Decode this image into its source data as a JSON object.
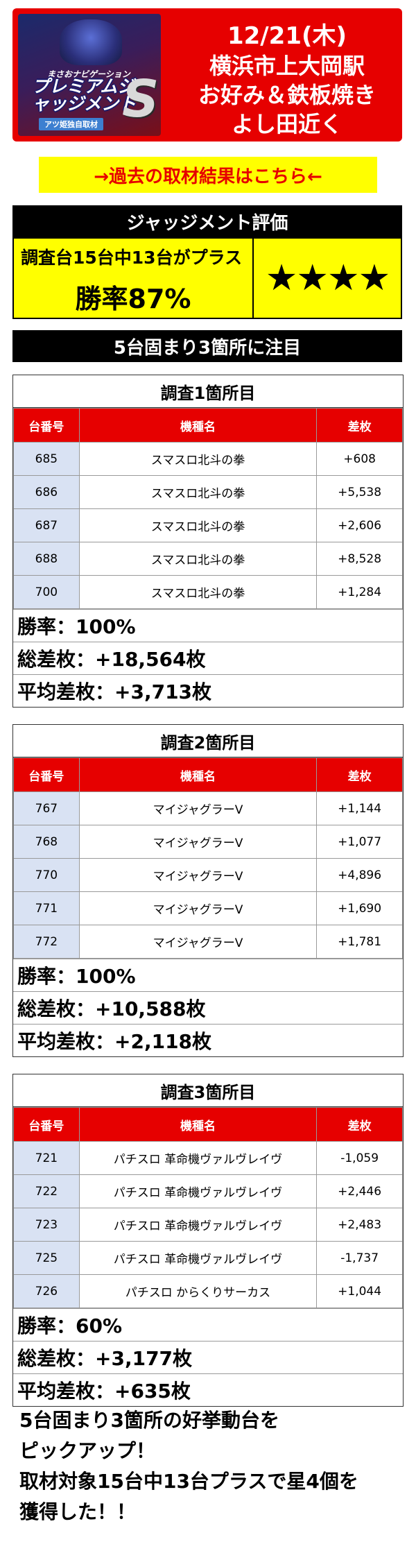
{
  "header": {
    "date": "12/21(木)",
    "lines": [
      "横浜市上大岡駅",
      "お好み＆鉄板焼き",
      "よし田近く"
    ],
    "logo": {
      "top_text": "まさおナビゲーション",
      "main_text": "プレミアムジャッジメント",
      "big_letter": "S",
      "sub_text": "アツ姫独自取材"
    }
  },
  "past_link": {
    "label": "→過去の取材結果はこちら←"
  },
  "judgement": {
    "title": "ジャッジメント評価",
    "summary": "調査台15台中13台がプラス",
    "win_rate": "勝率87%",
    "stars": "★★★★"
  },
  "focus_title": "5台固まり3箇所に注目",
  "table_headers": {
    "machine_no": "台番号",
    "model": "機種名",
    "diff": "差枚"
  },
  "sections": [
    {
      "title": "調査1箇所目",
      "rows": [
        {
          "no": "685",
          "model": "スマスロ北斗の拳",
          "diff": "+608"
        },
        {
          "no": "686",
          "model": "スマスロ北斗の拳",
          "diff": "+5,538"
        },
        {
          "no": "687",
          "model": "スマスロ北斗の拳",
          "diff": "+2,606"
        },
        {
          "no": "688",
          "model": "スマスロ北斗の拳",
          "diff": "+8,528"
        },
        {
          "no": "700",
          "model": "スマスロ北斗の拳",
          "diff": "+1,284"
        }
      ],
      "win_rate": "勝率：100%",
      "total": "総差枚：+18,564枚",
      "average": "平均差枚：+3,713枚"
    },
    {
      "title": "調査2箇所目",
      "rows": [
        {
          "no": "767",
          "model": "マイジャグラーV",
          "diff": "+1,144"
        },
        {
          "no": "768",
          "model": "マイジャグラーV",
          "diff": "+1,077"
        },
        {
          "no": "770",
          "model": "マイジャグラーV",
          "diff": "+4,896"
        },
        {
          "no": "771",
          "model": "マイジャグラーV",
          "diff": "+1,690"
        },
        {
          "no": "772",
          "model": "マイジャグラーV",
          "diff": "+1,781"
        }
      ],
      "win_rate": "勝率：100%",
      "total": "総差枚：+10,588枚",
      "average": "平均差枚：+2,118枚"
    },
    {
      "title": "調査3箇所目",
      "rows": [
        {
          "no": "721",
          "model": "パチスロ 革命機ヴァルヴレイヴ",
          "diff": "-1,059"
        },
        {
          "no": "722",
          "model": "パチスロ 革命機ヴァルヴレイヴ",
          "diff": "+2,446"
        },
        {
          "no": "723",
          "model": "パチスロ 革命機ヴァルヴレイヴ",
          "diff": "+2,483"
        },
        {
          "no": "725",
          "model": "パチスロ 革命機ヴァルヴレイヴ",
          "diff": "-1,737"
        },
        {
          "no": "726",
          "model": "パチスロ からくりサーカス",
          "diff": "+1,044"
        }
      ],
      "win_rate": "勝率：60%",
      "total": "総差枚：+3,177枚",
      "average": "平均差枚：+635枚"
    }
  ],
  "note": [
    "5台固まり3箇所の好挙動台を",
    "ピックアップ！",
    "取材対象15台中13台プラスで星4個を",
    "獲得した！！"
  ]
}
